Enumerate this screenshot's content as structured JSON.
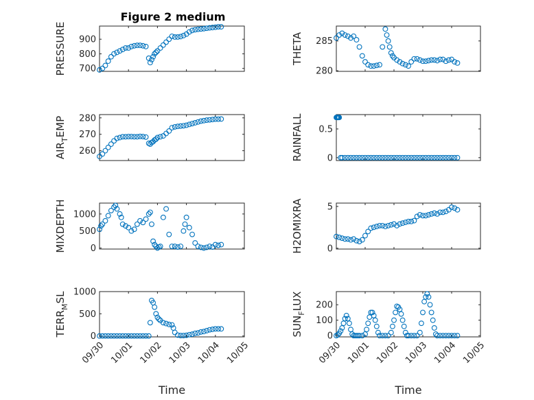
{
  "figure_title": "Figure 2 medium",
  "chart_data": [
    {
      "id": "pressure",
      "type": "scatter",
      "title": "Figure 2 medium",
      "xlabel": "",
      "ylabel": "PRESSURE",
      "xlim": [
        0,
        5
      ],
      "ylim": [
        680,
        990
      ],
      "yticks": [
        700,
        800,
        900
      ],
      "ytick_labels": [
        "700",
        "800",
        "900"
      ],
      "x": [
        0.0,
        0.1,
        0.2,
        0.3,
        0.4,
        0.5,
        0.6,
        0.7,
        0.8,
        0.9,
        1.0,
        1.1,
        1.2,
        1.3,
        1.4,
        1.5,
        1.6,
        1.7,
        1.75,
        1.8,
        1.85,
        1.9,
        1.95,
        2.0,
        2.1,
        2.2,
        2.3,
        2.4,
        2.5,
        2.6,
        2.7,
        2.8,
        2.9,
        3.0,
        3.1,
        3.2,
        3.3,
        3.4,
        3.5,
        3.6,
        3.7,
        3.8,
        3.9,
        4.0,
        4.1,
        4.2
      ],
      "y": [
        690,
        700,
        720,
        750,
        780,
        800,
        810,
        820,
        830,
        840,
        840,
        850,
        855,
        858,
        858,
        855,
        850,
        770,
        740,
        760,
        780,
        800,
        810,
        820,
        840,
        860,
        880,
        900,
        920,
        915,
        915,
        918,
        925,
        935,
        950,
        960,
        965,
        968,
        970,
        972,
        975,
        978,
        980,
        982,
        985,
        985
      ]
    },
    {
      "id": "theta",
      "type": "scatter",
      "xlabel": "",
      "ylabel": "THETA",
      "xlim": [
        0,
        5
      ],
      "ylim": [
        279.9,
        287.5
      ],
      "yticks": [
        280,
        285
      ],
      "ytick_labels": [
        "280",
        "285"
      ],
      "x": [
        0.0,
        0.1,
        0.2,
        0.3,
        0.4,
        0.5,
        0.6,
        0.7,
        0.8,
        0.9,
        1.0,
        1.1,
        1.2,
        1.3,
        1.4,
        1.5,
        1.6,
        1.7,
        1.75,
        1.8,
        1.85,
        1.9,
        1.95,
        2.0,
        2.1,
        2.2,
        2.3,
        2.4,
        2.5,
        2.6,
        2.7,
        2.8,
        2.9,
        3.0,
        3.1,
        3.2,
        3.3,
        3.4,
        3.5,
        3.6,
        3.7,
        3.8,
        3.9,
        4.0,
        4.1,
        4.2
      ],
      "y": [
        285.5,
        286.0,
        286.3,
        286.0,
        285.8,
        285.5,
        285.8,
        285.2,
        284.0,
        282.5,
        281.5,
        281.0,
        280.8,
        280.8,
        280.9,
        281.0,
        284.0,
        287.0,
        286.0,
        285.0,
        284.0,
        283.0,
        282.5,
        282.2,
        281.8,
        281.5,
        281.2,
        281.0,
        280.8,
        281.5,
        282.0,
        282.0,
        281.8,
        281.6,
        281.6,
        281.7,
        281.8,
        281.8,
        281.7,
        281.9,
        281.9,
        281.6,
        281.8,
        281.9,
        281.5,
        281.3
      ]
    },
    {
      "id": "air_temp",
      "type": "scatter",
      "xlabel": "",
      "ylabel": "AIR_TEMP",
      "ylabel_main": "AIR",
      "ylabel_sub": "T",
      "ylabel_rest": "EMP",
      "xlim": [
        0,
        5
      ],
      "ylim": [
        254,
        282
      ],
      "yticks": [
        260,
        270,
        280
      ],
      "ytick_labels": [
        "260",
        "270",
        "280"
      ],
      "x": [
        0.0,
        0.1,
        0.2,
        0.3,
        0.4,
        0.5,
        0.6,
        0.7,
        0.8,
        0.9,
        1.0,
        1.1,
        1.2,
        1.3,
        1.4,
        1.5,
        1.6,
        1.7,
        1.75,
        1.8,
        1.85,
        1.9,
        1.95,
        2.0,
        2.1,
        2.2,
        2.3,
        2.4,
        2.5,
        2.6,
        2.7,
        2.8,
        2.9,
        3.0,
        3.1,
        3.2,
        3.3,
        3.4,
        3.5,
        3.6,
        3.7,
        3.8,
        3.9,
        4.0,
        4.1,
        4.2
      ],
      "y": [
        256.5,
        258,
        260,
        262,
        264,
        266,
        267.5,
        268,
        268.5,
        268.5,
        268.6,
        268.6,
        268.5,
        268.5,
        268.7,
        268.6,
        268.3,
        264.5,
        264,
        265,
        265.5,
        266.5,
        267,
        268,
        268.5,
        269,
        270.5,
        272,
        274,
        274.5,
        274.8,
        275,
        275.2,
        275.5,
        276,
        276.5,
        277,
        277.5,
        278,
        278.3,
        278.6,
        278.8,
        279,
        279.2,
        279.2,
        279.3
      ]
    },
    {
      "id": "rainfall",
      "type": "scatter",
      "xlabel": "",
      "ylabel": "RAINFALL",
      "xlim": [
        0,
        5
      ],
      "ylim": [
        -0.05,
        0.75
      ],
      "yticks": [
        0,
        0.5
      ],
      "ytick_labels": [
        "0",
        "0.5"
      ],
      "x": [
        0.0,
        0.02,
        0.04,
        0.06,
        0.08,
        0.1,
        0.15,
        0.2,
        0.3,
        0.4,
        0.5,
        0.6,
        0.7,
        0.8,
        0.9,
        1.0,
        1.1,
        1.2,
        1.3,
        1.4,
        1.5,
        1.6,
        1.7,
        1.8,
        1.9,
        2.0,
        2.1,
        2.2,
        2.3,
        2.4,
        2.5,
        2.6,
        2.7,
        2.8,
        2.9,
        3.0,
        3.1,
        3.2,
        3.3,
        3.4,
        3.5,
        3.6,
        3.7,
        3.8,
        3.9,
        4.0,
        4.1,
        4.2
      ],
      "y": [
        0.7,
        0.7,
        0.7,
        0.7,
        0.7,
        0.7,
        0,
        0,
        0,
        0,
        0,
        0,
        0,
        0,
        0,
        0,
        0,
        0,
        0,
        0,
        0,
        0,
        0,
        0,
        0,
        0,
        0,
        0,
        0,
        0,
        0,
        0,
        0,
        0,
        0,
        0,
        0,
        0,
        0,
        0,
        0,
        0,
        0,
        0,
        0,
        0,
        0,
        0
      ]
    },
    {
      "id": "mixdepth",
      "type": "scatter",
      "xlabel": "",
      "ylabel": "MIXDEPTH",
      "xlim": [
        0,
        5
      ],
      "ylim": [
        -30,
        1320
      ],
      "yticks": [
        0,
        500,
        1000
      ],
      "ytick_labels": [
        "0",
        "500",
        "1000"
      ],
      "x": [
        0.0,
        0.05,
        0.1,
        0.2,
        0.3,
        0.4,
        0.5,
        0.55,
        0.6,
        0.7,
        0.75,
        0.8,
        0.9,
        1.0,
        1.1,
        1.2,
        1.3,
        1.4,
        1.5,
        1.6,
        1.7,
        1.75,
        1.8,
        1.85,
        1.9,
        1.95,
        2.0,
        2.05,
        2.1,
        2.2,
        2.3,
        2.4,
        2.5,
        2.6,
        2.7,
        2.8,
        2.9,
        2.95,
        3.0,
        3.1,
        3.2,
        3.3,
        3.4,
        3.5,
        3.6,
        3.7,
        3.8,
        3.9,
        4.0,
        4.1,
        4.2
      ],
      "y": [
        550,
        650,
        700,
        800,
        950,
        1100,
        1200,
        1250,
        1150,
        1000,
        900,
        700,
        650,
        600,
        500,
        550,
        700,
        800,
        750,
        850,
        1000,
        1050,
        700,
        200,
        100,
        50,
        0,
        30,
        50,
        900,
        1150,
        400,
        50,
        50,
        30,
        50,
        500,
        700,
        900,
        600,
        400,
        150,
        50,
        20,
        0,
        20,
        50,
        30,
        100,
        80,
        100
      ]
    },
    {
      "id": "h2omixra",
      "type": "scatter",
      "xlabel": "",
      "ylabel": "H2OMIXRA",
      "xlim": [
        0,
        5
      ],
      "ylim": [
        -0.1,
        5.4
      ],
      "yticks": [
        0,
        5
      ],
      "ytick_labels": [
        "0",
        "5"
      ],
      "x": [
        0.0,
        0.1,
        0.2,
        0.3,
        0.4,
        0.5,
        0.6,
        0.7,
        0.8,
        0.9,
        1.0,
        1.1,
        1.2,
        1.3,
        1.4,
        1.5,
        1.6,
        1.7,
        1.8,
        1.9,
        2.0,
        2.1,
        2.2,
        2.3,
        2.4,
        2.5,
        2.6,
        2.7,
        2.8,
        2.9,
        3.0,
        3.1,
        3.2,
        3.3,
        3.4,
        3.5,
        3.6,
        3.7,
        3.8,
        3.9,
        4.0,
        4.1,
        4.2
      ],
      "y": [
        1.4,
        1.3,
        1.2,
        1.1,
        1.1,
        1.0,
        1.1,
        0.9,
        0.8,
        1.0,
        1.5,
        2.0,
        2.4,
        2.5,
        2.6,
        2.7,
        2.7,
        2.6,
        2.7,
        2.8,
        2.9,
        2.7,
        2.9,
        3.0,
        3.1,
        3.2,
        3.2,
        3.3,
        3.8,
        4.0,
        3.9,
        3.9,
        4.0,
        4.1,
        4.2,
        4.1,
        4.3,
        4.3,
        4.4,
        4.6,
        4.9,
        4.8,
        4.6
      ]
    },
    {
      "id": "terr_msl",
      "type": "scatter",
      "xlabel": "Time",
      "ylabel": "TERR_MSL",
      "ylabel_main": "TERR",
      "ylabel_sub": "M",
      "ylabel_rest": "SL",
      "xlim": [
        0,
        5
      ],
      "ylim": [
        -20,
        1000
      ],
      "yticks": [
        0,
        500,
        1000
      ],
      "ytick_labels": [
        "0",
        "500",
        "1000"
      ],
      "xticks": [
        0,
        1,
        2,
        3,
        4,
        5
      ],
      "xtick_labels": [
        "09/30",
        "10/01",
        "10/02",
        "10/03",
        "10/04",
        "10/05"
      ],
      "x": [
        0.0,
        0.1,
        0.2,
        0.3,
        0.4,
        0.5,
        0.6,
        0.7,
        0.8,
        0.9,
        1.0,
        1.1,
        1.2,
        1.3,
        1.4,
        1.5,
        1.6,
        1.7,
        1.75,
        1.8,
        1.85,
        1.9,
        1.95,
        2.0,
        2.05,
        2.1,
        2.2,
        2.3,
        2.4,
        2.5,
        2.55,
        2.6,
        2.7,
        2.8,
        2.9,
        3.0,
        3.1,
        3.2,
        3.3,
        3.4,
        3.5,
        3.6,
        3.7,
        3.8,
        3.9,
        4.0,
        4.1,
        4.2
      ],
      "y": [
        0,
        0,
        0,
        0,
        0,
        0,
        0,
        0,
        0,
        0,
        0,
        0,
        0,
        0,
        0,
        0,
        0,
        0,
        300,
        800,
        750,
        650,
        500,
        420,
        380,
        350,
        300,
        280,
        260,
        250,
        180,
        80,
        20,
        10,
        10,
        15,
        30,
        40,
        60,
        70,
        90,
        100,
        120,
        140,
        150,
        160,
        160,
        160
      ]
    },
    {
      "id": "sun_flux",
      "type": "scatter",
      "xlabel": "Time",
      "ylabel": "SUN_FLUX",
      "ylabel_main": "SUN",
      "ylabel_sub": "F",
      "ylabel_rest": "LUX",
      "xlim": [
        0,
        5
      ],
      "ylim": [
        -8,
        285
      ],
      "yticks": [
        0,
        100,
        200
      ],
      "ytick_labels": [
        "0",
        "100",
        "200"
      ],
      "xticks": [
        0,
        1,
        2,
        3,
        4,
        5
      ],
      "xtick_labels": [
        "09/30",
        "10/01",
        "10/02",
        "10/03",
        "10/04",
        "10/05"
      ],
      "x": [
        0.0,
        0.05,
        0.1,
        0.15,
        0.2,
        0.25,
        0.3,
        0.35,
        0.4,
        0.45,
        0.5,
        0.55,
        0.6,
        0.65,
        0.7,
        0.75,
        0.8,
        0.9,
        1.0,
        1.05,
        1.1,
        1.15,
        1.2,
        1.25,
        1.3,
        1.35,
        1.4,
        1.45,
        1.5,
        1.6,
        1.7,
        1.8,
        1.9,
        1.95,
        2.0,
        2.05,
        2.1,
        2.15,
        2.2,
        2.25,
        2.3,
        2.35,
        2.4,
        2.45,
        2.5,
        2.6,
        2.7,
        2.8,
        2.9,
        2.95,
        3.0,
        3.05,
        3.1,
        3.15,
        3.2,
        3.25,
        3.3,
        3.35,
        3.4,
        3.45,
        3.5,
        3.6,
        3.7,
        3.8,
        3.9,
        4.0,
        4.1,
        4.2
      ],
      "y": [
        0,
        5,
        15,
        30,
        50,
        80,
        110,
        130,
        110,
        80,
        40,
        10,
        0,
        0,
        0,
        0,
        0,
        0,
        10,
        40,
        80,
        120,
        150,
        150,
        130,
        100,
        60,
        20,
        0,
        0,
        0,
        0,
        20,
        60,
        100,
        150,
        190,
        185,
        170,
        140,
        100,
        60,
        20,
        0,
        0,
        0,
        0,
        0,
        20,
        80,
        150,
        220,
        250,
        270,
        250,
        200,
        150,
        100,
        50,
        10,
        0,
        0,
        0,
        0,
        0,
        0,
        0,
        0
      ]
    }
  ]
}
